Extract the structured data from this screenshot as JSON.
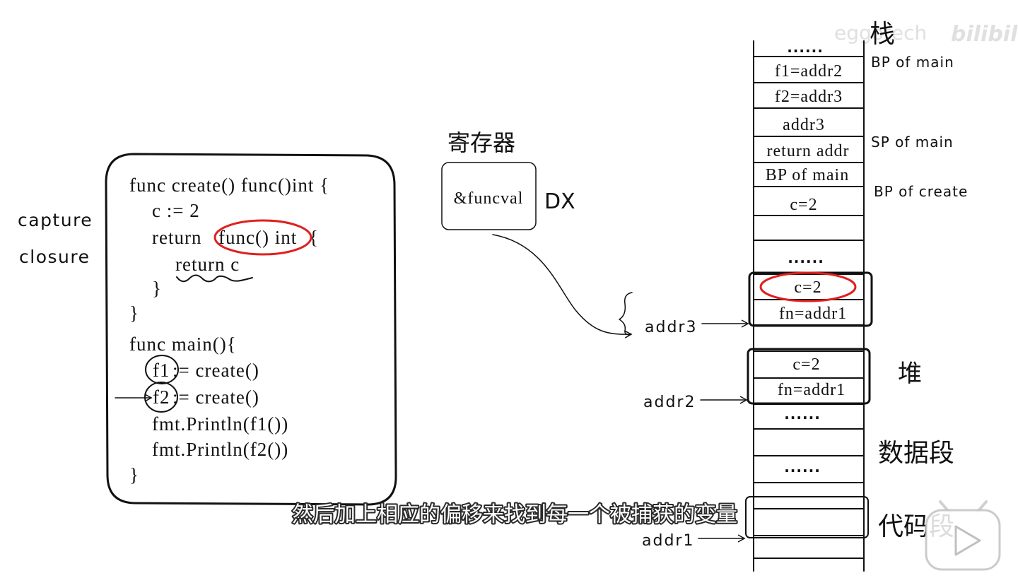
{
  "left_labels": {
    "capture": "capture",
    "closure": "closure"
  },
  "code": {
    "line_create": "func create() func()int {",
    "c_assign": "c := 2",
    "return_kw": "return",
    "inner_func": "func() int",
    "inner_open": "{",
    "return_c": "return c",
    "inner_close": "}",
    "create_close": "}",
    "main_sig": "func main(){",
    "f1": "f1",
    "f1_assign": ":= create()",
    "f2": "f2",
    "f2_assign": ":= create()",
    "print_f1": "fmt.Println(f1())",
    "print_f2": "fmt.Println(f2())",
    "main_close": "}"
  },
  "register": {
    "title": "寄存器",
    "value": "&funcval",
    "name": "DX"
  },
  "pointers": {
    "addr3": "addr3",
    "addr2": "addr2",
    "addr1": "addr1"
  },
  "stack": {
    "title": "栈",
    "top_dots": "......",
    "f1": "f1=addr2",
    "f2": "f2=addr3",
    "addr3": "addr3",
    "return_addr": "return addr",
    "bp_main_cell": "BP of main",
    "c": "c=2",
    "mid_dots": "......",
    "labels": {
      "bp_main": "BP of main",
      "sp_main": "SP of main",
      "bp_create": "BP of create"
    }
  },
  "heap": {
    "title": "堆",
    "objects": [
      {
        "c": "c=2",
        "fn": "fn=addr1"
      },
      {
        "c": "c=2",
        "fn": "fn=addr1"
      }
    ],
    "dots": "......"
  },
  "data_segment": {
    "title": "数据段",
    "dots": "......"
  },
  "code_segment": {
    "title": "代码段"
  },
  "subtitle": "然后加上相应的偏移来找到每一个被捕获的变量",
  "watermark": {
    "user": "eggotech",
    "logo": "bilibili"
  },
  "player": {
    "icon": "play-icon"
  },
  "colors": {
    "ink": "#111111",
    "highlight": "#e0201e",
    "subtitle": "#ffffff",
    "subtitle_outline": "#2a2a2a",
    "watermark": "#bbbbbb"
  }
}
